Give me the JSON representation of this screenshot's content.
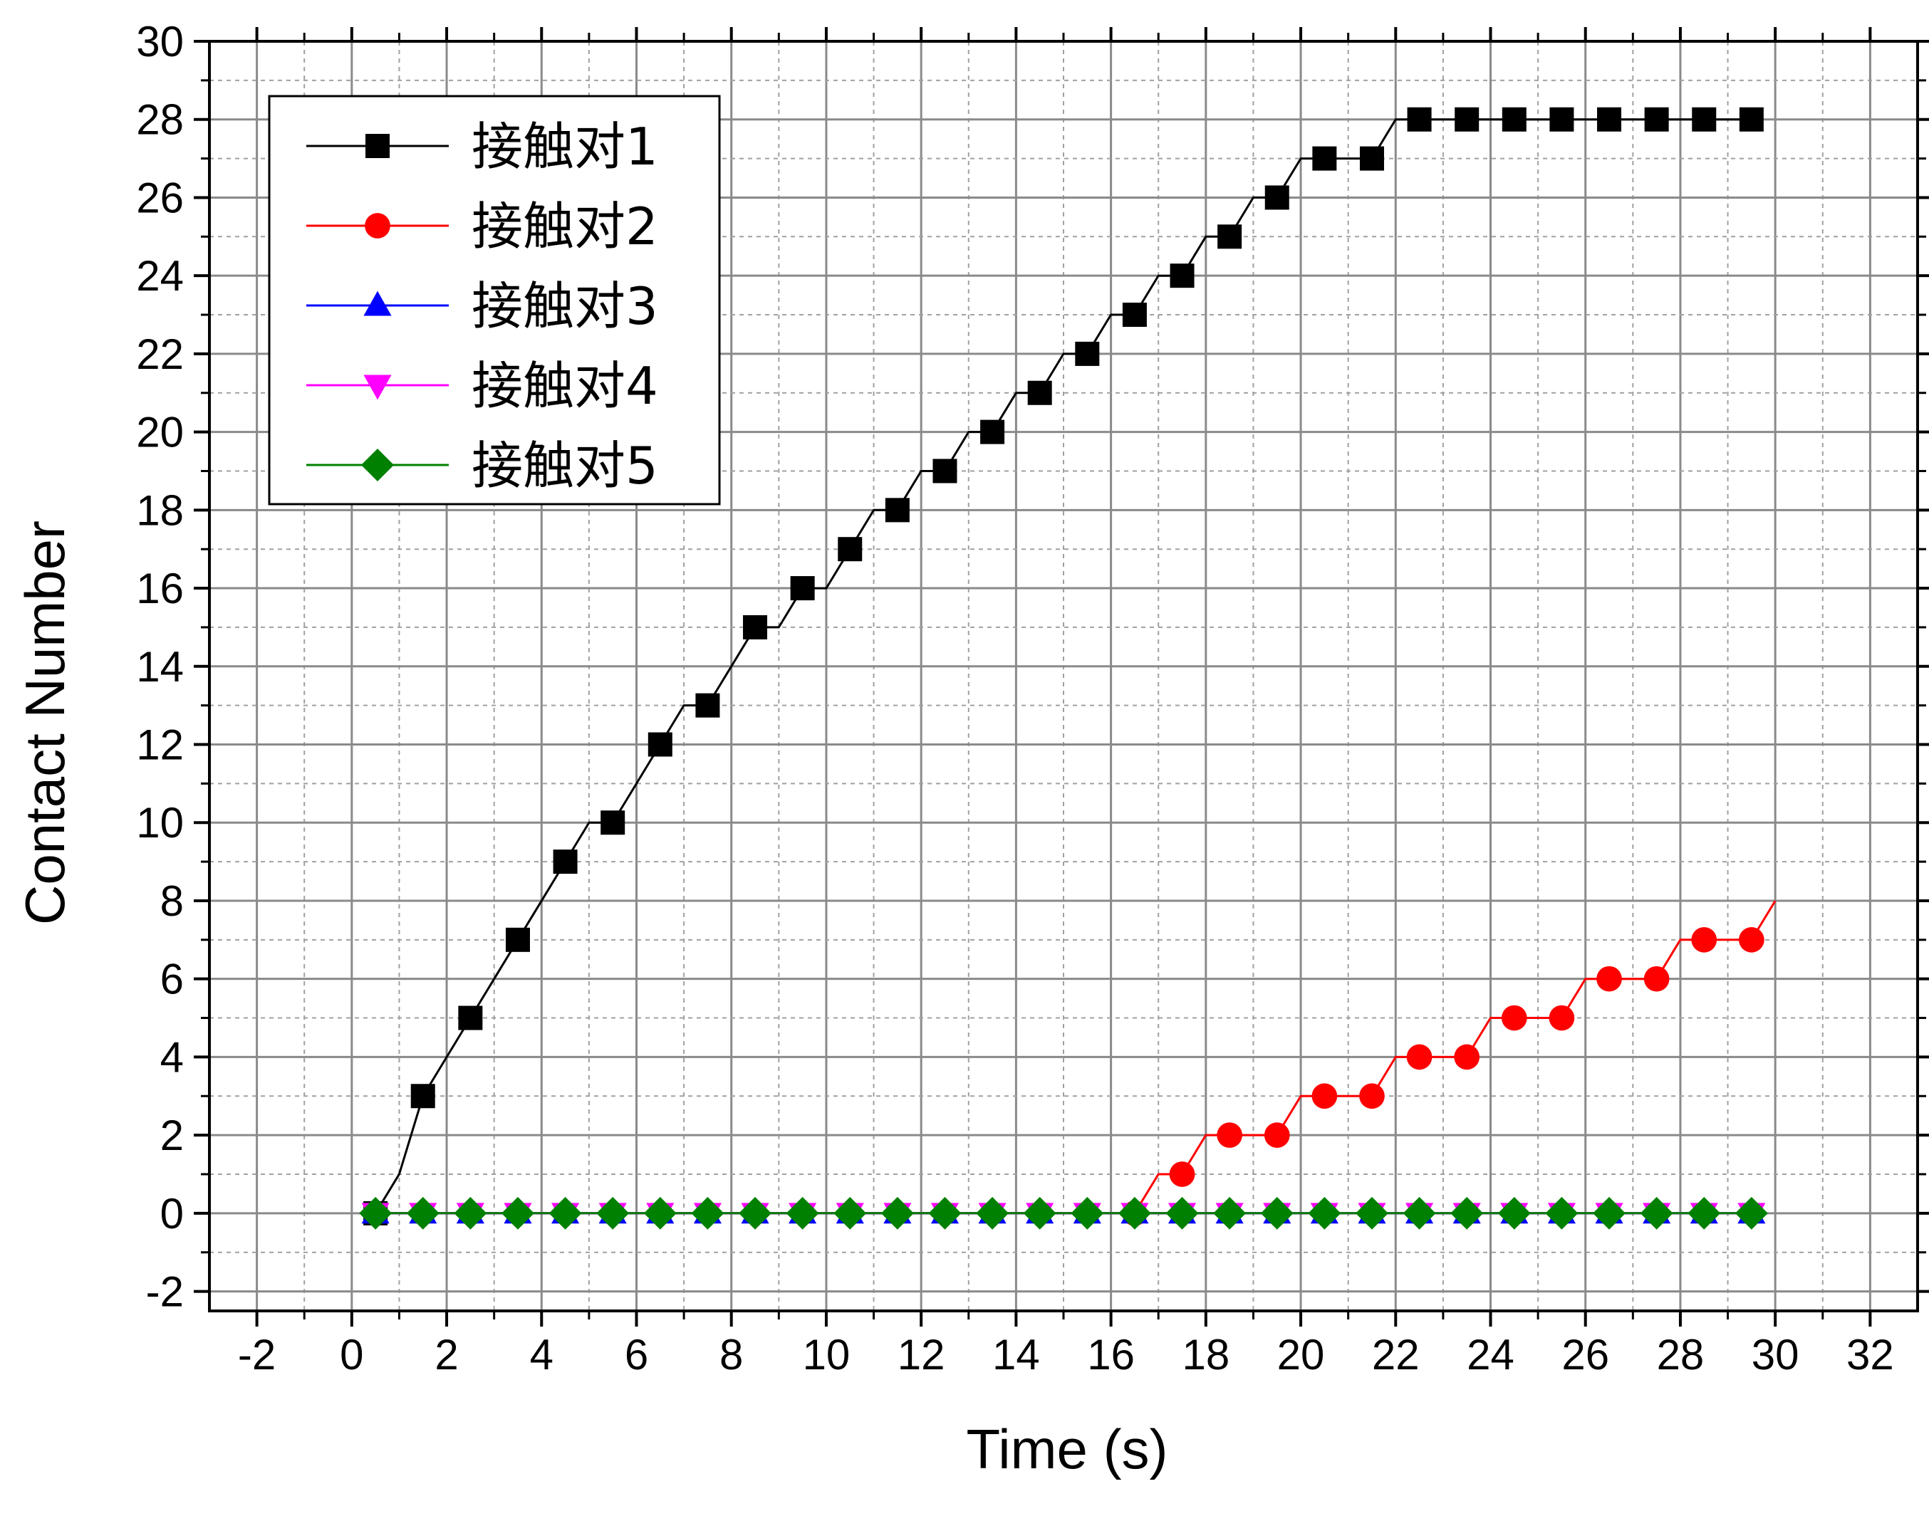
{
  "chart_data": {
    "type": "line",
    "xlabel": "Time (s)",
    "ylabel": "Contact Number",
    "xlim": [
      -3,
      33
    ],
    "ylim": [
      -2.5,
      30
    ],
    "x_ticks": [
      -2,
      0,
      2,
      4,
      6,
      8,
      10,
      12,
      14,
      16,
      18,
      20,
      22,
      24,
      26,
      28,
      30,
      32
    ],
    "y_ticks": [
      -2,
      0,
      2,
      4,
      6,
      8,
      10,
      12,
      14,
      16,
      18,
      20,
      22,
      24,
      26,
      28,
      30
    ],
    "grid": true,
    "legend_position": "top-left",
    "series": [
      {
        "name": "接触对1",
        "color": "#000000",
        "marker": "square",
        "x": [
          0.5,
          1.5,
          2.5,
          3.5,
          4.5,
          5.5,
          6.5,
          7.5,
          8.5,
          9.5,
          10.5,
          11.5,
          12.5,
          13.5,
          14.5,
          15.5,
          16.5,
          17.5,
          18.5,
          19.5,
          20.5,
          21.5,
          22.5,
          23.5,
          24.5,
          25.5,
          26.5,
          27.5,
          28.5,
          29.5
        ],
        "values": [
          0,
          3,
          5,
          7,
          9,
          10,
          12,
          13,
          15,
          16,
          17,
          18,
          19,
          20,
          21,
          22,
          23,
          24,
          25,
          26,
          27,
          27,
          28,
          28,
          28,
          28,
          28,
          28,
          28,
          28
        ],
        "line_x": [
          0.5,
          1,
          1.5,
          2,
          2.5,
          3,
          3.5,
          4,
          4.5,
          5,
          5.5,
          6,
          6.5,
          7,
          7.5,
          8,
          8.5,
          9,
          9.5,
          10,
          10.5,
          11,
          11.5,
          12,
          12.5,
          13,
          13.5,
          14,
          14.5,
          15,
          15.5,
          16,
          16.5,
          17,
          17.5,
          18,
          18.5,
          19,
          19.5,
          20,
          20.5,
          21,
          21.5,
          22,
          22.5,
          23,
          23.5,
          24,
          24.5,
          25,
          25.5,
          26,
          26.5,
          27,
          27.5,
          28,
          28.5,
          29,
          29.5
        ],
        "line_y": [
          0,
          1,
          3,
          4,
          5,
          6,
          7,
          8,
          9,
          10,
          10,
          11,
          12,
          13,
          13,
          14,
          15,
          15,
          16,
          16,
          17,
          18,
          18,
          19,
          19,
          20,
          20,
          21,
          21,
          22,
          22,
          23,
          23,
          24,
          24,
          25,
          25,
          26,
          26,
          27,
          27,
          27,
          27,
          28,
          28,
          28,
          28,
          28,
          28,
          28,
          28,
          28,
          28,
          28,
          28,
          28,
          28,
          28,
          28
        ]
      },
      {
        "name": "接触对2",
        "color": "#ff0000",
        "marker": "circle",
        "x": [
          16.5,
          17.5,
          18.5,
          19.5,
          20.5,
          21.5,
          22.5,
          23.5,
          24.5,
          25.5,
          26.5,
          27.5,
          28.5,
          29.5
        ],
        "values": [
          0,
          1,
          2,
          2,
          3,
          3,
          4,
          4,
          5,
          5,
          6,
          6,
          7,
          7
        ],
        "line_x": [
          0.5,
          16.5,
          17,
          17.5,
          18,
          18.5,
          19,
          19.5,
          20,
          20.5,
          21,
          21.5,
          22,
          22.5,
          23,
          23.5,
          24,
          24.5,
          25,
          25.5,
          26,
          26.5,
          27,
          27.5,
          28,
          28.5,
          29,
          29.5,
          30
        ],
        "line_y": [
          0,
          0,
          1,
          1,
          2,
          2,
          2,
          2,
          3,
          3,
          3,
          3,
          4,
          4,
          4,
          4,
          5,
          5,
          5,
          5,
          6,
          6,
          6,
          6,
          7,
          7,
          7,
          7,
          8
        ]
      },
      {
        "name": "接触对3",
        "color": "#0000ff",
        "marker": "triangle-up",
        "x": [
          0.5,
          1.5,
          2.5,
          3.5,
          4.5,
          5.5,
          6.5,
          7.5,
          8.5,
          9.5,
          10.5,
          11.5,
          12.5,
          13.5,
          14.5,
          15.5,
          16.5,
          17.5,
          18.5,
          19.5,
          20.5,
          21.5,
          22.5,
          23.5,
          24.5,
          25.5,
          26.5,
          27.5,
          28.5,
          29.5
        ],
        "values": [
          0,
          0,
          0,
          0,
          0,
          0,
          0,
          0,
          0,
          0,
          0,
          0,
          0,
          0,
          0,
          0,
          0,
          0,
          0,
          0,
          0,
          0,
          0,
          0,
          0,
          0,
          0,
          0,
          0,
          0
        ]
      },
      {
        "name": "接触对4",
        "color": "#ff00ff",
        "marker": "triangle-down",
        "x": [
          0.5,
          1.5,
          2.5,
          3.5,
          4.5,
          5.5,
          6.5,
          7.5,
          8.5,
          9.5,
          10.5,
          11.5,
          12.5,
          13.5,
          14.5,
          15.5,
          16.5,
          17.5,
          18.5,
          19.5,
          20.5,
          21.5,
          22.5,
          23.5,
          24.5,
          25.5,
          26.5,
          27.5,
          28.5,
          29.5
        ],
        "values": [
          0,
          0,
          0,
          0,
          0,
          0,
          0,
          0,
          0,
          0,
          0,
          0,
          0,
          0,
          0,
          0,
          0,
          0,
          0,
          0,
          0,
          0,
          0,
          0,
          0,
          0,
          0,
          0,
          0,
          0
        ]
      },
      {
        "name": "接触对5",
        "color": "#008000",
        "marker": "diamond",
        "x": [
          0.5,
          1.5,
          2.5,
          3.5,
          4.5,
          5.5,
          6.5,
          7.5,
          8.5,
          9.5,
          10.5,
          11.5,
          12.5,
          13.5,
          14.5,
          15.5,
          16.5,
          17.5,
          18.5,
          19.5,
          20.5,
          21.5,
          22.5,
          23.5,
          24.5,
          25.5,
          26.5,
          27.5,
          28.5,
          29.5
        ],
        "values": [
          0,
          0,
          0,
          0,
          0,
          0,
          0,
          0,
          0,
          0,
          0,
          0,
          0,
          0,
          0,
          0,
          0,
          0,
          0,
          0,
          0,
          0,
          0,
          0,
          0,
          0,
          0,
          0,
          0,
          0
        ]
      }
    ]
  }
}
